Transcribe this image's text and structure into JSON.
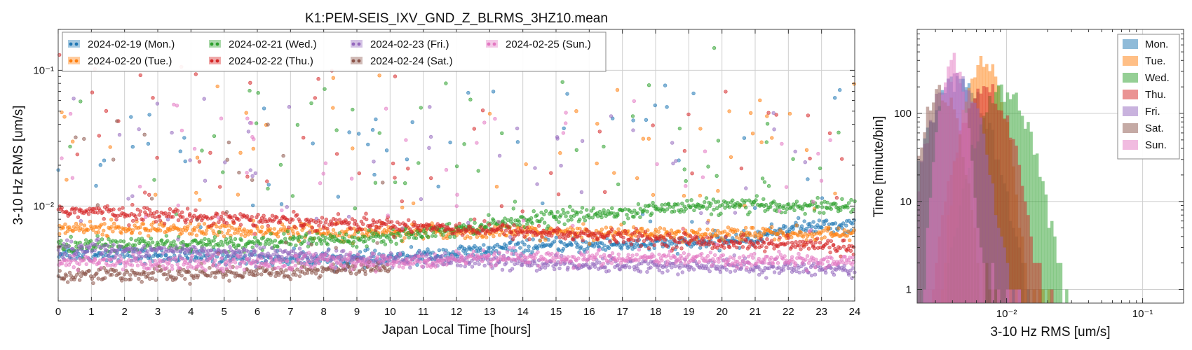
{
  "chart_data": [
    {
      "type": "scatter",
      "title": "K1:PEM-SEIS_IXV_GND_Z_BLRMS_3HZ10.mean",
      "xlabel": "Japan Local Time [hours]",
      "ylabel": "3-10 Hz RMS [um/s]",
      "xlim": [
        0,
        24
      ],
      "ylim": [
        0.002,
        0.2
      ],
      "yscale": "log",
      "grid": true,
      "legend_position": "top-left",
      "x_ticks": [
        0,
        1,
        2,
        3,
        4,
        5,
        6,
        7,
        8,
        9,
        10,
        11,
        12,
        13,
        14,
        15,
        16,
        17,
        18,
        19,
        20,
        21,
        22,
        23,
        24
      ],
      "x_tick_labels": [
        "0",
        "1",
        "2",
        "3",
        "4",
        "5",
        "6",
        "7",
        "8",
        "9",
        "10",
        "11",
        "12",
        "13",
        "14",
        "15",
        "16",
        "17",
        "18",
        "19",
        "20",
        "21",
        "22",
        "23",
        "24"
      ],
      "y_ticks": [
        0.01,
        0.1
      ],
      "y_tick_labels": [
        "10⁻²",
        "10⁻¹"
      ],
      "series": [
        {
          "name": "2024-02-19 (Mon.)",
          "color": "#1f77b4",
          "baseline": [
            [
              0,
              0.0045
            ],
            [
              6,
              0.0041
            ],
            [
              10,
              0.0041
            ],
            [
              14,
              0.005
            ],
            [
              17,
              0.0052
            ],
            [
              19,
              0.0053
            ],
            [
              21,
              0.0058
            ],
            [
              22,
              0.007
            ],
            [
              24,
              0.0072
            ]
          ]
        },
        {
          "name": "2024-02-20 (Tue.)",
          "color": "#ff7f0e",
          "baseline": [
            [
              0,
              0.0069
            ],
            [
              6,
              0.0066
            ],
            [
              10,
              0.0065
            ],
            [
              16,
              0.0064
            ],
            [
              20,
              0.0063
            ],
            [
              24,
              0.0062
            ]
          ]
        },
        {
          "name": "2024-02-21 (Wed.)",
          "color": "#2ca02c",
          "baseline": [
            [
              0,
              0.0051
            ],
            [
              5,
              0.0053
            ],
            [
              9,
              0.0058
            ],
            [
              12,
              0.0068
            ],
            [
              14,
              0.008
            ],
            [
              17,
              0.009
            ],
            [
              19,
              0.01
            ],
            [
              24,
              0.01
            ]
          ]
        },
        {
          "name": "2024-02-22 (Thu.)",
          "color": "#d62728",
          "baseline": [
            [
              0,
              0.0093
            ],
            [
              6,
              0.008
            ],
            [
              10,
              0.0073
            ],
            [
              14,
              0.0065
            ],
            [
              18,
              0.0057
            ],
            [
              20,
              0.0054
            ],
            [
              24,
              0.005
            ]
          ]
        },
        {
          "name": "2024-02-23 (Fri.)",
          "color": "#9467bd",
          "baseline": [
            [
              0,
              0.0049
            ],
            [
              6,
              0.0045
            ],
            [
              10,
              0.004
            ],
            [
              16,
              0.0037
            ],
            [
              20,
              0.0036
            ],
            [
              24,
              0.0034
            ]
          ]
        },
        {
          "name": "2024-02-24 (Sat.)",
          "color": "#8c564b",
          "baseline": [
            [
              0,
              0.0031
            ],
            [
              5,
              0.0032
            ],
            [
              10,
              0.0035
            ]
          ]
        },
        {
          "name": "2024-02-25 (Sun.)",
          "color": "#e377c2",
          "baseline": [
            [
              0,
              0.0038
            ],
            [
              10,
              0.0039
            ],
            [
              14,
              0.0042
            ],
            [
              18,
              0.0041
            ],
            [
              24,
              0.0039
            ]
          ]
        }
      ]
    },
    {
      "type": "bar",
      "subtype": "histogram",
      "title": "",
      "xlabel": "3-10 Hz RMS [um/s]",
      "ylabel": "Time [minute/bin]",
      "xscale": "log",
      "yscale": "log",
      "xlim": [
        0.0022,
        0.2
      ],
      "ylim": [
        0.7,
        900
      ],
      "grid": true,
      "legend_position": "top-right",
      "x_ticks": [
        0.01,
        0.1
      ],
      "x_tick_labels": [
        "10⁻²",
        "10⁻¹"
      ],
      "y_ticks": [
        1,
        10,
        100
      ],
      "y_tick_labels": [
        "1",
        "10",
        "100"
      ],
      "series": [
        {
          "name": "Mon.",
          "color": "#1f77b4",
          "center": 0.0045,
          "peak": 240,
          "spread": 0.14
        },
        {
          "name": "Tue.",
          "color": "#ff7f0e",
          "center": 0.0068,
          "peak": 420,
          "spread": 0.09
        },
        {
          "name": "Wed.",
          "color": "#2ca02c",
          "center": 0.0095,
          "peak": 180,
          "spread": 0.13
        },
        {
          "name": "Thu.",
          "color": "#d62728",
          "center": 0.007,
          "peak": 200,
          "spread": 0.12
        },
        {
          "name": "Fri.",
          "color": "#9467bd",
          "center": 0.0042,
          "peak": 300,
          "spread": 0.11
        },
        {
          "name": "Sat.",
          "color": "#8c564b",
          "center": 0.0033,
          "peak": 180,
          "spread": 0.09
        },
        {
          "name": "Sun.",
          "color": "#e377c2",
          "center": 0.004,
          "peak": 420,
          "spread": 0.06
        }
      ]
    }
  ]
}
